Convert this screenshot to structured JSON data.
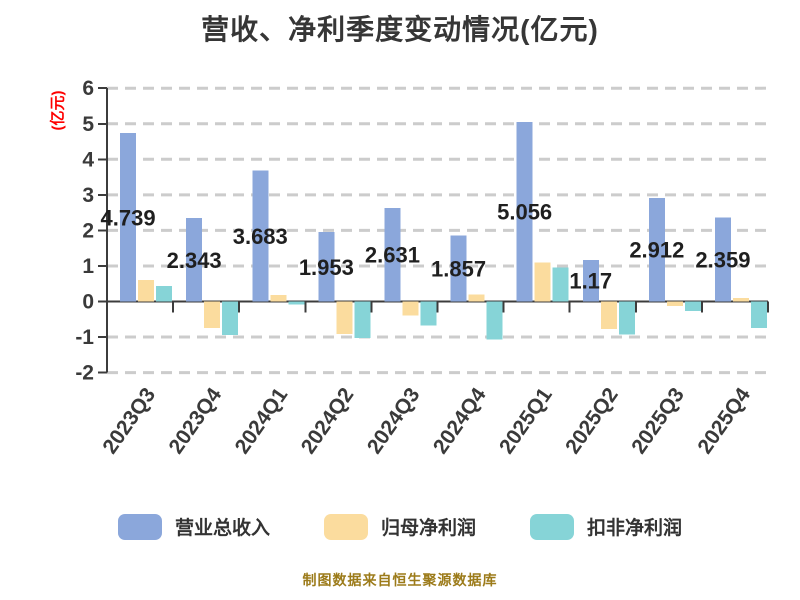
{
  "title": "营收、净利季度变动情况(亿元)",
  "y_axis_title": "(亿元)",
  "footer": "制图数据来自恒生聚源数据库",
  "colors": {
    "revenue": "#8ba7db",
    "net_profit": "#fbdc9e",
    "deducted_profit": "#86d4d7",
    "grid": "#cccccc",
    "axis": "#3c3c3c",
    "tick_text": "#3a3a3a",
    "value_label": "#1f1f1f",
    "title_text": "#363636",
    "axis_title": "#fe0000",
    "footer_text": "#9c7b1a"
  },
  "chart_data": {
    "type": "bar",
    "title": "营收、净利季度变动情况(亿元)",
    "ylabel": "(亿元)",
    "ylim": [
      -2,
      6
    ],
    "y_ticks": [
      6,
      5,
      4,
      3,
      2,
      1,
      0,
      -1,
      -2
    ],
    "grid": "horizontal dashed",
    "legend_position": "bottom",
    "categories": [
      "2023Q3",
      "2023Q4",
      "2024Q1",
      "2024Q2",
      "2024Q3",
      "2024Q4",
      "2025Q1",
      "2025Q2",
      "2025Q3",
      "2025Q4"
    ],
    "series": [
      {
        "key": "revenue",
        "name": "营业总收入",
        "values": [
          4.739,
          2.343,
          3.683,
          1.953,
          2.631,
          1.857,
          5.056,
          1.17,
          2.912,
          2.359
        ],
        "value_labels": [
          "4.739",
          "2.343",
          "3.683",
          "1.953",
          "2.631",
          "1.857",
          "5.056",
          "1.17",
          "2.912",
          "2.359"
        ]
      },
      {
        "key": "net-profit",
        "name": "归母净利润",
        "values": [
          0.61,
          -0.74,
          0.18,
          -0.91,
          -0.4,
          0.2,
          1.1,
          -0.78,
          -0.13,
          0.1
        ]
      },
      {
        "key": "deducted-profit",
        "name": "扣非净利润",
        "values": [
          0.43,
          -0.94,
          -0.09,
          -1.03,
          -0.67,
          -1.07,
          0.96,
          -0.93,
          -0.27,
          -0.75
        ]
      }
    ]
  },
  "legend": {
    "items": [
      {
        "label": "营业总收入"
      },
      {
        "label": "归母净利润"
      },
      {
        "label": "扣非净利润"
      }
    ]
  }
}
